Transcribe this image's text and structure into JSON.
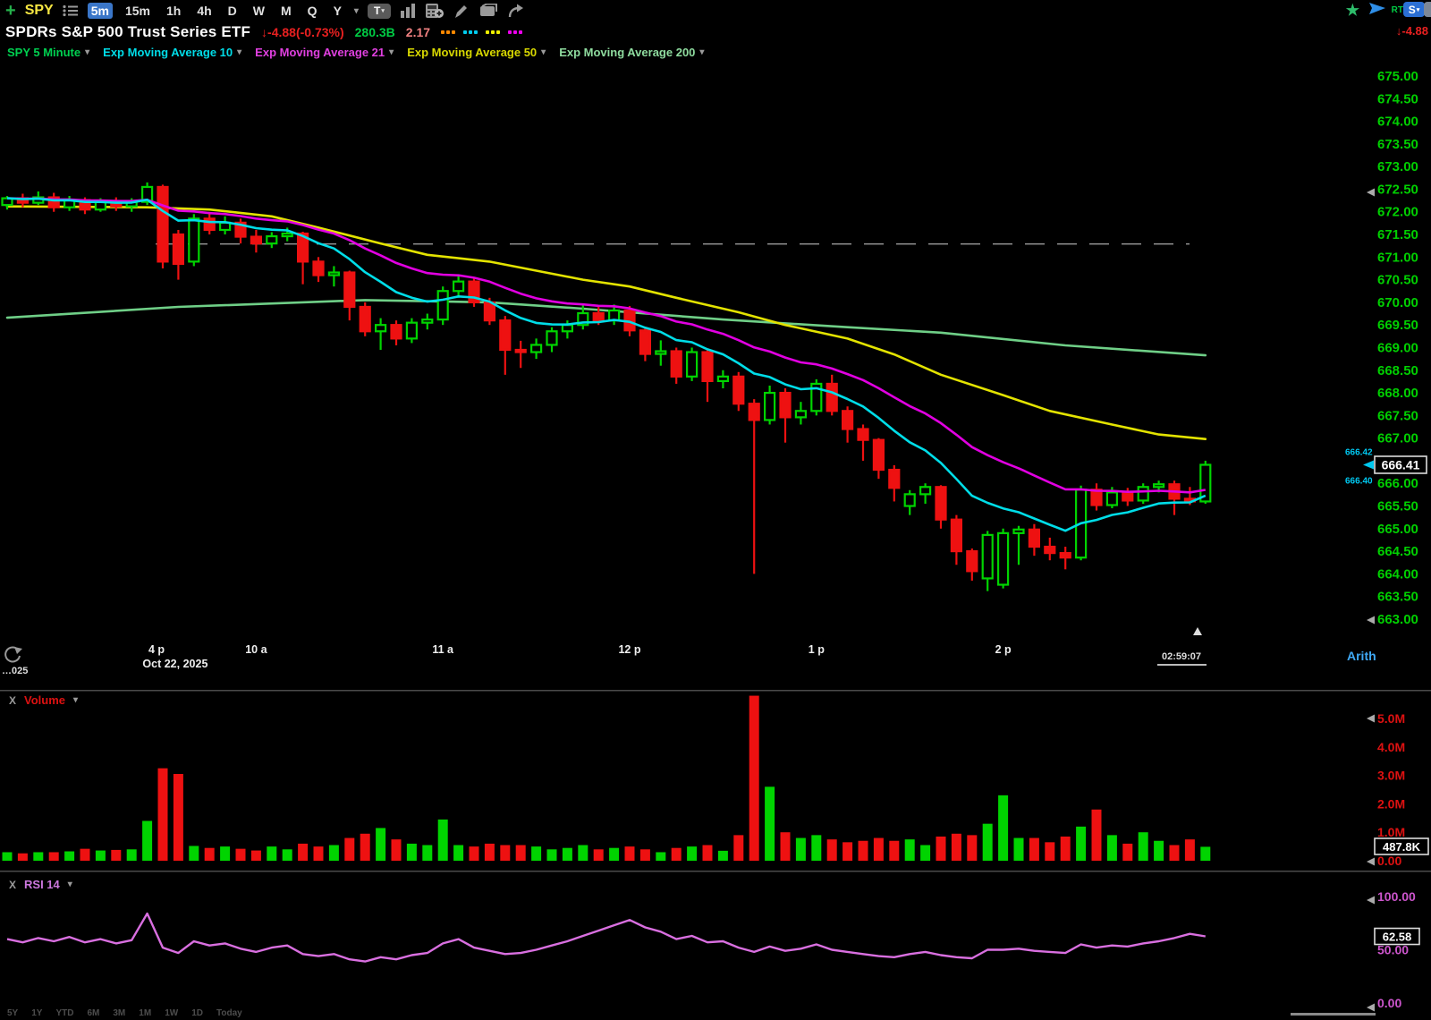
{
  "toolbar": {
    "symbol": "SPY",
    "timeframes": [
      "5m",
      "15m",
      "1h",
      "4h",
      "D",
      "W",
      "M",
      "Q",
      "Y"
    ],
    "selected_timeframe": "5m",
    "tool_icons": [
      "text-tool",
      "indicators",
      "calculator-add",
      "draw-pencil",
      "documents",
      "share-forward"
    ],
    "right": {
      "rt_label": "RT",
      "stream_label": "S"
    }
  },
  "title_bar": {
    "name": "SPDRs S&P 500 Trust Series ETF",
    "change": "-4.88",
    "change_pct": "(-0.73%)",
    "market_cap": "280.3B",
    "metric": "2.17",
    "dot_colors": [
      "#ff8800",
      "#00ccee",
      "#eeee00",
      "#ee00ee"
    ],
    "right_change": "-4.88"
  },
  "legend": {
    "items": [
      {
        "label": "SPY 5 Minute",
        "color": "#00d050"
      },
      {
        "label": "Exp Moving Average 10",
        "color": "#00dde8"
      },
      {
        "label": "Exp Moving Average 21",
        "color": "#e040e0"
      },
      {
        "label": "Exp Moving Average 50",
        "color": "#d8d800"
      },
      {
        "label": "Exp Moving Average 200",
        "color": "#8fdc9f"
      }
    ]
  },
  "volume_pane": {
    "close_label": "X",
    "label": "Volume",
    "axis_labels": [
      "5.0M",
      "4.0M",
      "3.0M",
      "2.0M",
      "1.0M",
      "0.00"
    ],
    "current": "487.8K"
  },
  "rsi_pane": {
    "close_label": "X",
    "label": "RSI 14",
    "axis_labels": [
      "100.00",
      "50.00",
      "0.00"
    ],
    "current": "62.58"
  },
  "time_axis": {
    "ticks": [
      {
        "label": "4 p",
        "bar": 9.6
      },
      {
        "label": "10 a",
        "bar": 16
      },
      {
        "label": "11 a",
        "bar": 28
      },
      {
        "label": "12 p",
        "bar": 40
      },
      {
        "label": "1 p",
        "bar": 52
      },
      {
        "label": "2 p",
        "bar": 64
      }
    ],
    "date_label": "Oct 22, 2025",
    "date_bar": 10.8,
    "current_time": "02:59:07",
    "left_edge_label": "…025",
    "scale_mode": "Arith"
  },
  "bottom_links": [
    "5Y",
    "1Y",
    "YTD",
    "6M",
    "3M",
    "1M",
    "1W",
    "1D",
    "Today"
  ],
  "chart_data": {
    "type": "candlestick",
    "symbol": "SPY",
    "interval": "5 Minute",
    "title": "SPDRs S&P 500 Trust Series ETF",
    "price_axis": {
      "max": 675.0,
      "min": 663.0,
      "step": 0.5
    },
    "volume_axis": {
      "max": 5.0,
      "step": 1.0,
      "unit": "M"
    },
    "rsi_axis": {
      "max": 100,
      "mid": 50,
      "min": 0
    },
    "prev_close": 671.29,
    "current": {
      "price": "666.41",
      "ask": "666.42",
      "bid": "666.40",
      "volume": "487.8K",
      "rsi": "62.58"
    },
    "colors": {
      "up": "#00d400",
      "down": "#ee1111",
      "ema10": "#00dde8",
      "ema21": "#e100e1",
      "ema50": "#e3e300",
      "ema200": "#6fcf87",
      "rsi": "#d96fe0",
      "axis_price": "#00cf00",
      "axis_volume": "#dd1111",
      "axis_rsi": "#cc55cc",
      "prev_close_line": "#999999",
      "bidask": "#00c8f0"
    },
    "bars_format": [
      "open",
      "high",
      "low",
      "close",
      "volume_m",
      "rsi"
    ],
    "bars": [
      [
        672.15,
        672.35,
        672.05,
        672.3,
        0.3,
        60
      ],
      [
        672.3,
        672.4,
        672.1,
        672.2,
        0.26,
        57
      ],
      [
        672.2,
        672.45,
        672.15,
        672.32,
        0.3,
        61
      ],
      [
        672.32,
        672.42,
        672.0,
        672.1,
        0.3,
        58
      ],
      [
        672.1,
        672.35,
        672.02,
        672.26,
        0.33,
        62
      ],
      [
        672.26,
        672.32,
        671.95,
        672.05,
        0.42,
        57
      ],
      [
        672.05,
        672.3,
        672.0,
        672.22,
        0.36,
        60
      ],
      [
        672.22,
        672.32,
        672.02,
        672.12,
        0.38,
        56
      ],
      [
        672.12,
        672.3,
        672.0,
        672.22,
        0.4,
        59
      ],
      [
        672.22,
        672.65,
        672.15,
        672.55,
        1.4,
        84
      ],
      [
        672.55,
        672.6,
        670.75,
        670.9,
        3.25,
        52
      ],
      [
        671.5,
        671.6,
        670.5,
        670.85,
        3.05,
        47
      ],
      [
        670.9,
        671.95,
        670.8,
        671.85,
        0.52,
        58
      ],
      [
        671.85,
        672.0,
        671.5,
        671.6,
        0.45,
        54
      ],
      [
        671.6,
        671.9,
        671.5,
        671.76,
        0.5,
        56
      ],
      [
        671.76,
        671.85,
        671.3,
        671.45,
        0.42,
        51
      ],
      [
        671.45,
        671.6,
        671.1,
        671.3,
        0.36,
        48
      ],
      [
        671.3,
        671.55,
        671.2,
        671.46,
        0.5,
        52
      ],
      [
        671.46,
        671.65,
        671.35,
        671.52,
        0.4,
        54
      ],
      [
        671.52,
        671.56,
        670.4,
        670.9,
        0.6,
        46
      ],
      [
        670.9,
        671.0,
        670.45,
        670.6,
        0.5,
        44
      ],
      [
        670.6,
        670.8,
        670.35,
        670.66,
        0.55,
        46
      ],
      [
        670.66,
        670.7,
        669.6,
        669.9,
        0.8,
        41
      ],
      [
        669.9,
        670.0,
        669.25,
        669.36,
        0.95,
        39
      ],
      [
        669.36,
        669.65,
        668.95,
        669.5,
        1.15,
        43
      ],
      [
        669.5,
        669.6,
        669.05,
        669.2,
        0.75,
        41
      ],
      [
        669.2,
        669.65,
        669.1,
        669.55,
        0.6,
        45
      ],
      [
        669.55,
        669.75,
        669.4,
        669.62,
        0.55,
        47
      ],
      [
        669.62,
        670.35,
        669.5,
        670.25,
        1.45,
        56
      ],
      [
        670.25,
        670.6,
        670.1,
        670.46,
        0.55,
        60
      ],
      [
        670.46,
        670.55,
        669.9,
        670.0,
        0.5,
        52
      ],
      [
        670.0,
        670.1,
        669.5,
        669.6,
        0.6,
        49
      ],
      [
        669.6,
        669.7,
        668.4,
        668.95,
        0.55,
        46
      ],
      [
        668.95,
        669.15,
        668.55,
        668.9,
        0.55,
        47
      ],
      [
        668.9,
        669.2,
        668.75,
        669.06,
        0.5,
        50
      ],
      [
        669.06,
        669.45,
        668.9,
        669.36,
        0.4,
        54
      ],
      [
        669.36,
        669.6,
        669.2,
        669.5,
        0.45,
        58
      ],
      [
        669.5,
        669.95,
        669.4,
        669.76,
        0.55,
        63
      ],
      [
        669.76,
        669.9,
        669.5,
        669.6,
        0.4,
        68
      ],
      [
        669.6,
        669.95,
        669.5,
        669.82,
        0.45,
        73
      ],
      [
        669.82,
        669.92,
        669.25,
        669.38,
        0.5,
        78
      ],
      [
        669.38,
        669.46,
        668.7,
        668.86,
        0.4,
        71
      ],
      [
        668.86,
        669.16,
        668.6,
        668.92,
        0.3,
        67
      ],
      [
        668.92,
        669.0,
        668.2,
        668.36,
        0.45,
        60
      ],
      [
        668.36,
        669.0,
        668.26,
        668.9,
        0.5,
        63
      ],
      [
        668.9,
        668.96,
        667.8,
        668.26,
        0.55,
        57
      ],
      [
        668.26,
        668.5,
        668.1,
        668.36,
        0.35,
        58
      ],
      [
        668.36,
        668.46,
        667.6,
        667.76,
        0.9,
        52
      ],
      [
        667.76,
        667.86,
        664.0,
        667.4,
        5.8,
        48
      ],
      [
        667.4,
        668.16,
        667.3,
        668.0,
        2.6,
        53
      ],
      [
        668.0,
        668.1,
        666.9,
        667.46,
        1.0,
        49
      ],
      [
        667.46,
        667.8,
        667.3,
        667.6,
        0.8,
        51
      ],
      [
        667.6,
        668.3,
        667.5,
        668.2,
        0.9,
        55
      ],
      [
        668.2,
        668.4,
        667.5,
        667.6,
        0.75,
        50
      ],
      [
        667.6,
        667.7,
        666.9,
        667.2,
        0.65,
        48
      ],
      [
        667.2,
        667.3,
        666.5,
        666.96,
        0.7,
        46
      ],
      [
        666.96,
        667.0,
        666.1,
        666.3,
        0.8,
        44
      ],
      [
        666.3,
        666.4,
        665.6,
        665.9,
        0.7,
        43
      ],
      [
        665.5,
        665.85,
        665.3,
        665.76,
        0.75,
        46
      ],
      [
        665.76,
        666.0,
        665.55,
        665.92,
        0.55,
        48
      ],
      [
        665.92,
        665.96,
        665.0,
        665.2,
        0.85,
        45
      ],
      [
        665.2,
        665.3,
        664.2,
        664.5,
        0.95,
        43
      ],
      [
        664.5,
        664.56,
        663.85,
        664.06,
        0.9,
        42
      ],
      [
        663.9,
        664.95,
        663.62,
        664.86,
        1.3,
        50
      ],
      [
        663.76,
        665.0,
        663.68,
        664.9,
        2.3,
        50
      ],
      [
        664.9,
        665.06,
        664.2,
        664.98,
        0.8,
        51
      ],
      [
        664.98,
        665.1,
        664.4,
        664.6,
        0.8,
        49
      ],
      [
        664.6,
        664.8,
        664.3,
        664.46,
        0.65,
        48
      ],
      [
        664.46,
        664.6,
        664.1,
        664.36,
        0.85,
        47
      ],
      [
        664.36,
        665.95,
        664.3,
        665.86,
        1.2,
        55
      ],
      [
        665.86,
        666.0,
        665.4,
        665.52,
        1.8,
        52
      ],
      [
        665.52,
        665.92,
        665.45,
        665.8,
        0.9,
        54
      ],
      [
        665.8,
        665.9,
        665.5,
        665.62,
        0.6,
        53
      ],
      [
        665.62,
        666.0,
        665.55,
        665.92,
        1.0,
        56
      ],
      [
        665.92,
        666.06,
        665.8,
        665.98,
        0.7,
        58
      ],
      [
        665.98,
        666.06,
        665.3,
        665.66,
        0.55,
        61
      ],
      [
        665.66,
        665.92,
        665.52,
        665.6,
        0.75,
        65
      ],
      [
        665.6,
        666.5,
        665.55,
        666.41,
        0.49,
        62.58
      ]
    ],
    "overlays": [
      {
        "name": "Exp Moving Average 10",
        "period": 10,
        "color": "#00dde8",
        "source": "computed"
      },
      {
        "name": "Exp Moving Average 21",
        "period": 21,
        "color": "#e100e1",
        "source": "computed"
      },
      {
        "name": "Exp Moving Average 50",
        "period": 50,
        "color": "#e3e300",
        "source": "points",
        "points": [
          [
            0,
            672.12
          ],
          [
            9,
            672.1
          ],
          [
            13,
            672.05
          ],
          [
            17,
            671.9
          ],
          [
            20,
            671.65
          ],
          [
            24,
            671.3
          ],
          [
            27,
            671.05
          ],
          [
            31,
            670.9
          ],
          [
            34,
            670.7
          ],
          [
            37,
            670.5
          ],
          [
            40,
            670.35
          ],
          [
            43,
            670.1
          ],
          [
            47,
            669.78
          ],
          [
            50,
            669.5
          ],
          [
            54,
            669.2
          ],
          [
            57,
            668.85
          ],
          [
            60,
            668.4
          ],
          [
            64,
            667.95
          ],
          [
            67,
            667.6
          ],
          [
            71,
            667.3
          ],
          [
            74,
            667.08
          ],
          [
            77,
            666.98
          ]
        ]
      },
      {
        "name": "Exp Moving Average 200",
        "period": 200,
        "color": "#6fcf87",
        "source": "points",
        "points": [
          [
            0,
            669.66
          ],
          [
            11,
            669.9
          ],
          [
            23,
            670.05
          ],
          [
            31,
            670.0
          ],
          [
            37,
            669.86
          ],
          [
            46,
            669.62
          ],
          [
            54,
            669.45
          ],
          [
            60,
            669.33
          ],
          [
            68,
            669.05
          ],
          [
            77,
            668.83
          ]
        ]
      }
    ]
  }
}
